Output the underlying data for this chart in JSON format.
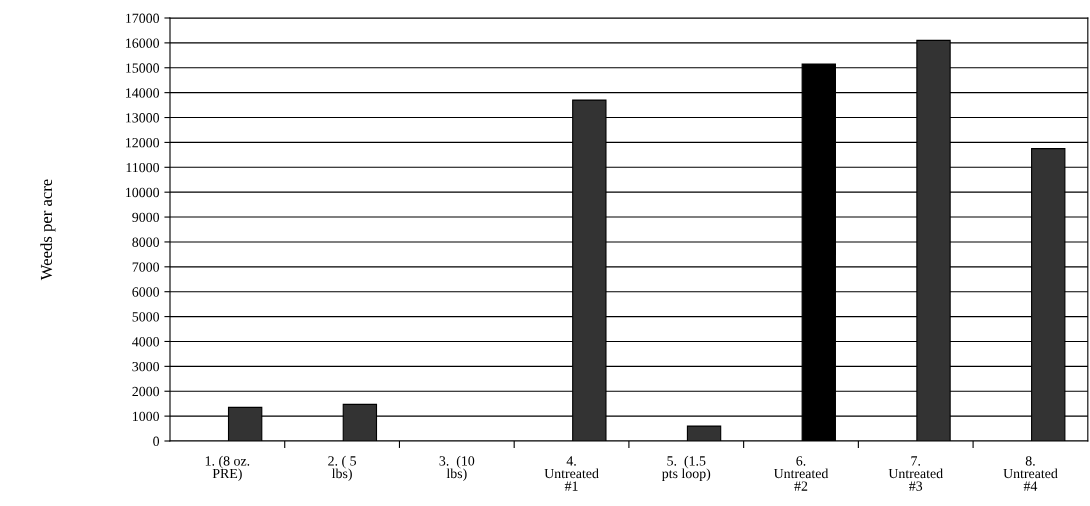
{
  "chart_data": {
    "type": "bar",
    "ylabel": "Weeds per acre",
    "categories": [
      "1. (8 oz.\nPRE)",
      "2. ( 5\nlbs)",
      "3.  (10\nlbs)",
      "4.\nUntreated\n#1",
      "5.  (1.5\npts loop)",
      "6.\nUntreated\n#2",
      "7.\nUntreated\n#3",
      "8.\nUntreated\n#4"
    ],
    "values": [
      1350,
      1470,
      0,
      13700,
      600,
      15150,
      16100,
      11750
    ],
    "colors": [
      "#333333",
      "#333333",
      "#333333",
      "#333333",
      "#333333",
      "#000000",
      "#333333",
      "#333333"
    ],
    "ylim": [
      0,
      17000
    ],
    "yticks": [
      0,
      1000,
      2000,
      3000,
      4000,
      5000,
      6000,
      7000,
      8000,
      9000,
      10000,
      11000,
      12000,
      13000,
      14000,
      15000,
      16000,
      17000
    ],
    "grid": "y"
  }
}
